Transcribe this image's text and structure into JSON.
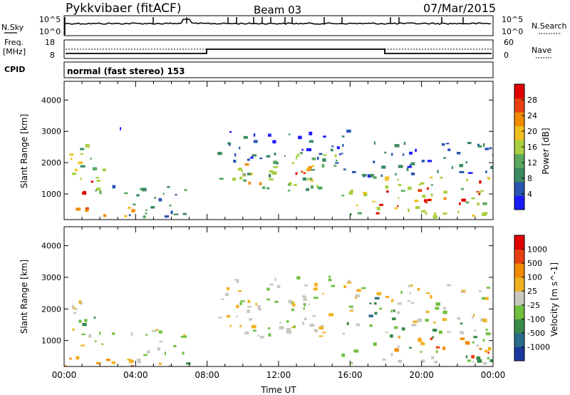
{
  "header": {
    "station": "Pykkvibaer (fitACF)",
    "beam": "Beam 03",
    "date": "07/Mar/2015"
  },
  "top_panels": {
    "nsky_label": "N.Sky",
    "nsearch_label": "N.Search",
    "nsky_ticks": [
      "10^5",
      "10^0"
    ],
    "nsky_right_ticks": [
      "10^5",
      "10^0"
    ],
    "freq_label_1": "Freq.",
    "freq_label_2": "[MHz]",
    "freq_ticks": [
      "18",
      "8"
    ],
    "nave_label": "Nave",
    "nave_ticks": [
      "60",
      "0"
    ],
    "cpid_label": "CPID",
    "cpid_value": "normal (fast stereo) 153"
  },
  "colors": {
    "power_scale": [
      "#1a1aff",
      "#2a55b0",
      "#3a8a60",
      "#5aa860",
      "#a8d040",
      "#f0c020",
      "#f08c00",
      "#e84010",
      "#e00000"
    ],
    "velocity_scale": [
      "#1a3aa0",
      "#2a6a8a",
      "#3a8a4a",
      "#70c040",
      "#c8c8c0",
      "#f0b020",
      "#f08c00",
      "#e84010",
      "#e00000"
    ]
  },
  "chart_data": [
    {
      "type": "heatmap",
      "title": "Power",
      "ylabel": "Slant Range [km]",
      "ylim": [
        180,
        4600
      ],
      "xlim": [
        0,
        24
      ],
      "x_ticks": [
        "00:00",
        "04:00",
        "08:00",
        "12:00",
        "16:00",
        "20:00",
        "00:00"
      ],
      "y_ticks": [
        1000,
        2000,
        3000,
        4000
      ],
      "colorbar_label": "Power [dB]",
      "colorbar_ticks": [
        "28",
        "24",
        "20",
        "16",
        "12",
        "8",
        "4"
      ],
      "regions": [
        {
          "t0": 0.0,
          "t1": 3.8,
          "r0": 220,
          "r1": 600,
          "level": 6
        },
        {
          "t0": 0.2,
          "t1": 2.2,
          "r0": 800,
          "r1": 2300,
          "level": 4
        },
        {
          "t0": 1.0,
          "t1": 2.0,
          "r0": 1000,
          "r1": 1600,
          "level": 7
        },
        {
          "t0": 0.3,
          "t1": 1.2,
          "r0": 1800,
          "r1": 2800,
          "level": 3
        },
        {
          "t0": 2.5,
          "t1": 6.8,
          "r0": 250,
          "r1": 1400,
          "level": 2
        },
        {
          "t0": 3.0,
          "t1": 3.8,
          "r0": 2800,
          "r1": 3200,
          "level": 1
        },
        {
          "t0": 8.5,
          "t1": 15.2,
          "r0": 1100,
          "r1": 2400,
          "level": 3
        },
        {
          "t0": 10.0,
          "t1": 14.0,
          "r0": 1300,
          "r1": 2000,
          "level": 5
        },
        {
          "t0": 12.5,
          "t1": 14.0,
          "r0": 1400,
          "r1": 1900,
          "level": 7
        },
        {
          "t0": 9.0,
          "t1": 16.0,
          "r0": 2000,
          "r1": 3100,
          "level": 1
        },
        {
          "t0": 15.5,
          "t1": 24.0,
          "r0": 300,
          "r1": 1600,
          "level": 4
        },
        {
          "t0": 16.8,
          "t1": 18.8,
          "r0": 400,
          "r1": 700,
          "level": 8
        },
        {
          "t0": 18.0,
          "t1": 21.5,
          "r0": 800,
          "r1": 1300,
          "level": 7
        },
        {
          "t0": 22.0,
          "t1": 23.4,
          "r0": 700,
          "r1": 1500,
          "level": 8
        },
        {
          "t0": 15.5,
          "t1": 24.0,
          "r0": 1600,
          "r1": 2800,
          "level": 1
        }
      ]
    },
    {
      "type": "heatmap",
      "title": "Velocity",
      "ylabel": "Slant Range [km]",
      "xlabel": "Time UT",
      "ylim": [
        180,
        4600
      ],
      "xlim": [
        0,
        24
      ],
      "x_ticks": [
        "00:00",
        "04:00",
        "08:00",
        "12:00",
        "16:00",
        "20:00",
        "00:00"
      ],
      "y_ticks": [
        1000,
        2000,
        3000,
        4000
      ],
      "colorbar_label": "Velocity [m s^-1]",
      "colorbar_ticks": [
        "1000",
        "500",
        "100",
        "25",
        "-25",
        "-100",
        "-500",
        "-1000"
      ],
      "regions": [
        {
          "t0": 0.0,
          "t1": 3.8,
          "r0": 220,
          "r1": 600,
          "level": 6
        },
        {
          "t0": 0.2,
          "t1": 2.2,
          "r0": 800,
          "r1": 2300,
          "level": 4
        },
        {
          "t0": 0.8,
          "t1": 2.0,
          "r0": 1000,
          "r1": 1800,
          "level": 2
        },
        {
          "t0": 2.5,
          "t1": 6.8,
          "r0": 250,
          "r1": 1400,
          "level": 4
        },
        {
          "t0": 4.0,
          "t1": 7.0,
          "r0": 200,
          "r1": 400,
          "level": 3
        },
        {
          "t0": 8.5,
          "t1": 15.2,
          "r0": 1100,
          "r1": 2400,
          "level": 4
        },
        {
          "t0": 9.0,
          "t1": 16.0,
          "r0": 2000,
          "r1": 3100,
          "level": 4
        },
        {
          "t0": 15.5,
          "t1": 24.0,
          "r0": 300,
          "r1": 1600,
          "level": 3
        },
        {
          "t0": 18.0,
          "t1": 21.5,
          "r0": 700,
          "r1": 1200,
          "level": 6
        },
        {
          "t0": 20.5,
          "t1": 23.8,
          "r0": 500,
          "r1": 1100,
          "level": 6
        },
        {
          "t0": 15.5,
          "t1": 24.0,
          "r0": 1600,
          "r1": 2800,
          "level": 4
        },
        {
          "t0": 17.0,
          "t1": 19.0,
          "r0": 1600,
          "r1": 2400,
          "level": 2
        }
      ]
    }
  ]
}
